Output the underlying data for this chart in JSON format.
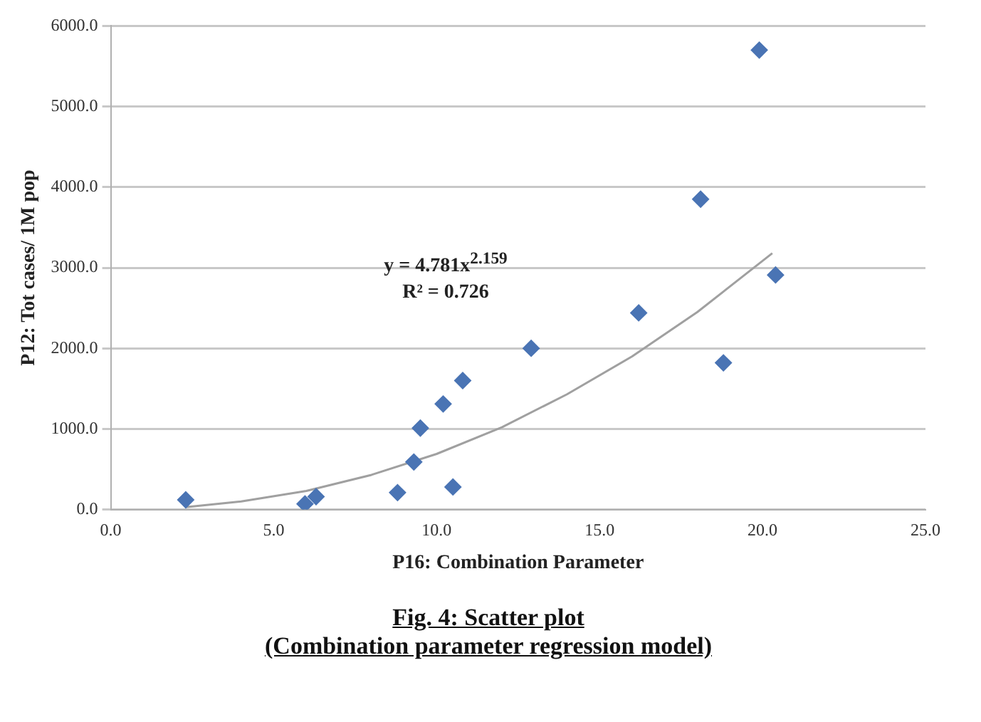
{
  "chart_data": {
    "type": "scatter",
    "title": "Fig. 4: Scatter plot",
    "subtitle": "(Combination parameter regression model)",
    "xlabel": "P16: Combination Parameter",
    "ylabel": "P12: Tot cases/ 1M pop",
    "annotations": [
      "y = 4.781x$^{2.159}$",
      "R² = 0.726"
    ],
    "series": [
      {
        "type": "scatter",
        "marker": "diamond",
        "color": "#4a74b4",
        "x": [
          2.3,
          5.96,
          6.3,
          8.8,
          9.3,
          9.5,
          10.2,
          10.5,
          10.8,
          12.9,
          16.2,
          18.1,
          18.8,
          19.9,
          20.4
        ],
        "values": [
          120,
          70,
          160,
          210,
          590,
          1010,
          1310,
          280,
          1600,
          2000,
          2440,
          3850,
          1820,
          5700,
          2910
        ]
      },
      {
        "type": "line",
        "marker": "none",
        "color": "#a0a0a0",
        "x": [
          2.3,
          4,
          6,
          8,
          10,
          12,
          14,
          16,
          18,
          20.3
        ],
        "values": [
          30,
          100,
          230,
          430,
          690,
          1020,
          1430,
          1900,
          2450,
          3180
        ]
      }
    ],
    "grid": "y",
    "legend": false,
    "xlim": [
      0,
      25
    ],
    "xticks": [
      {
        "value": 0,
        "label": "0.0"
      },
      {
        "value": 5,
        "label": "5.0"
      },
      {
        "value": 10,
        "label": "10.0"
      },
      {
        "value": 15,
        "label": "15.0"
      },
      {
        "value": 20,
        "label": "20.0"
      },
      {
        "value": 25,
        "label": "25.0"
      }
    ],
    "ylim": [
      0,
      6000
    ],
    "yticks": [
      {
        "value": 0,
        "label": "0.0"
      },
      {
        "value": 1000,
        "label": "1000.0"
      },
      {
        "value": 2000,
        "label": "2000.0"
      },
      {
        "value": 3000,
        "label": "3000.0"
      },
      {
        "value": 4000,
        "label": "4000.0"
      },
      {
        "value": 5000,
        "label": "5000.0"
      },
      {
        "value": 6000,
        "label": "6000.0"
      }
    ]
  }
}
